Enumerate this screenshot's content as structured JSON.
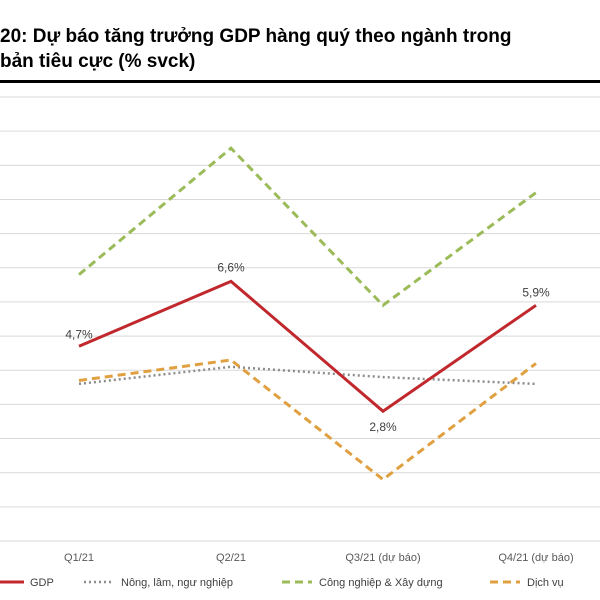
{
  "title": {
    "line1": "20: Dự báo tăng trưởng GDP hàng quý theo ngành trong",
    "line2": "bản tiêu cực (% svck)"
  },
  "chart_data": {
    "type": "line",
    "categories": [
      "Q1/21",
      "Q2/21",
      "Q3/21 (dự báo)",
      "Q4/21 (dự báo)"
    ],
    "ylim": [
      -1,
      12
    ],
    "grid": true,
    "legend_position": "bottom",
    "series": [
      {
        "name": "GDP",
        "values": [
          4.7,
          6.6,
          2.8,
          5.9
        ],
        "color": "#c0282d",
        "style": "solid",
        "labels": [
          "4,7%",
          "6,6%",
          "2,8%",
          "5,9%"
        ]
      },
      {
        "name": "Nông, lâm, ngư nghiệp",
        "values": [
          3.6,
          4.1,
          3.8,
          3.6
        ],
        "color": "#8c8c8c",
        "style": "dotted"
      },
      {
        "name": "Công nghiệp & Xây dựng",
        "values": [
          6.8,
          10.5,
          5.9,
          9.2
        ],
        "color": "#9bbb59",
        "style": "dashed"
      },
      {
        "name": "Dịch vụ",
        "values": [
          3.7,
          4.3,
          0.8,
          4.2
        ],
        "color": "#e0a040",
        "style": "dashed"
      }
    ]
  }
}
